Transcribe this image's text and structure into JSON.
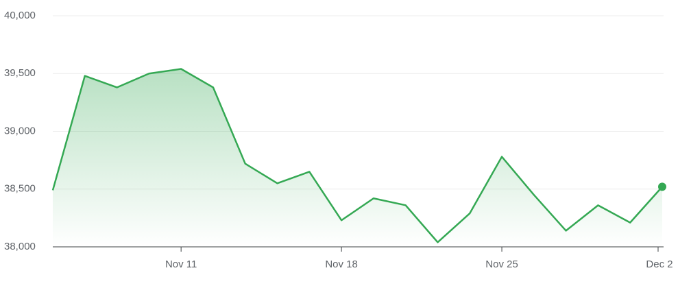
{
  "chart_data": {
    "type": "line",
    "categories": [
      null,
      null,
      null,
      null,
      "Nov 11",
      null,
      null,
      null,
      null,
      "Nov 18",
      null,
      null,
      null,
      null,
      "Nov 25",
      null,
      null,
      null,
      null,
      "Dec 2"
    ],
    "values": [
      38490,
      39480,
      39380,
      39500,
      39540,
      39380,
      38720,
      38550,
      38650,
      38230,
      38420,
      38360,
      38040,
      38290,
      38780,
      38450,
      38140,
      38360,
      38210,
      38520
    ],
    "color": "#34a853",
    "ylim": [
      38000,
      40000
    ],
    "yticks": [
      {
        "value": 38000,
        "label": "38,000"
      },
      {
        "value": 38500,
        "label": "38,500"
      },
      {
        "value": 39000,
        "label": "39,000"
      },
      {
        "value": 39500,
        "label": "39,500"
      },
      {
        "value": 40000,
        "label": "40,000"
      }
    ],
    "grid": true
  }
}
